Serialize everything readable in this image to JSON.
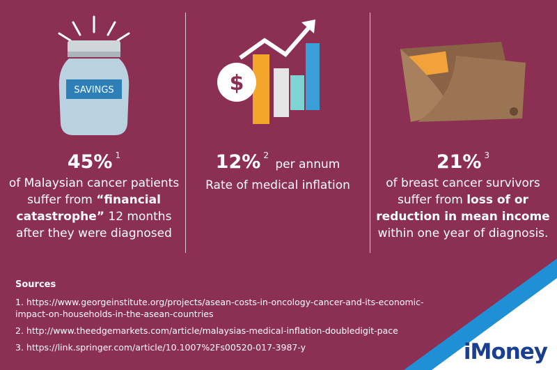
{
  "stats": [
    {
      "value": "45%",
      "note": "1",
      "before": "of Malaysian cancer patients suffer from",
      "highlight": "“financial catastrophe”",
      "after": "12 months after they were diagnosed"
    },
    {
      "value": "12%",
      "note": "2",
      "unit": "per annum",
      "text": "Rate of medical inflation"
    },
    {
      "value": "21%",
      "note": "3",
      "before": "of breast cancer survivors suffer from",
      "highlight": "loss of or reduction in mean income",
      "after": "within one year of diagnosis."
    }
  ],
  "jar_label": "SAVINGS",
  "sources": {
    "title": "Sources",
    "items": [
      "1. https://www.georgeinstitute.org/projects/asean-costs-in-oncology-cancer-and-its-economic-impact-on-households-in-the-asean-countries",
      "2. http://www.theedgemarkets.com/article/malaysias-medical-inflation-doubledigit-pace",
      "3. https://link.springer.com/article/10.1007%2Fs00520-017-3987-y"
    ]
  },
  "logo": "iMoney"
}
